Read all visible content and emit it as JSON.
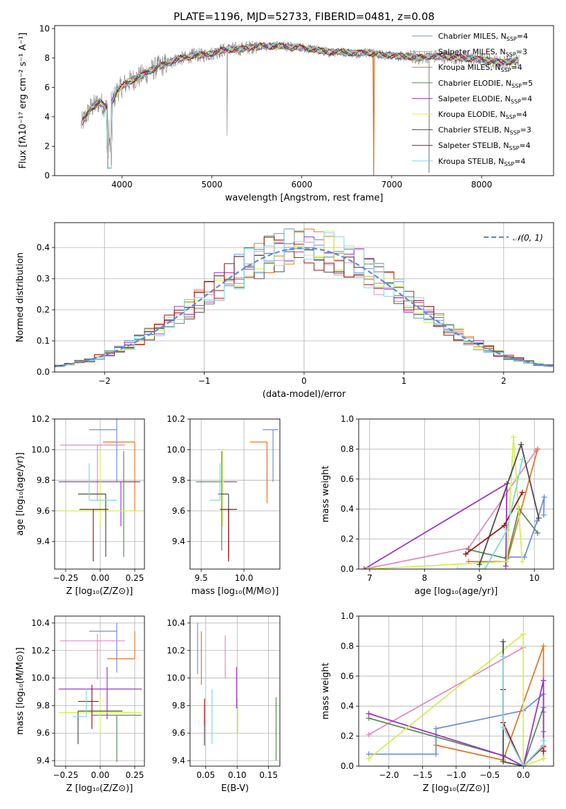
{
  "figure_title": "PLATE=1196, MJD=52733, FIBERID=0481, z=0.08",
  "colors": {
    "Chabrier MILES": "#6b8fe0",
    "Salpeter MILES": "#e08ac0",
    "Kroupa MILES": "#e07828",
    "Chabrier ELODIE": "#5a8c5a",
    "Salpeter ELODIE": "#9b35c0",
    "Kroupa ELODIE": "#d4ee50",
    "Chabrier STELIB": "#4a4a4a",
    "Salpeter STELIB": "#a01010",
    "Kroupa STELIB": "#80d8e0",
    "data": "#808080",
    "gaussian": "#5b8ad6"
  },
  "chart_data": [
    {
      "id": "spectrum",
      "type": "line",
      "title": "PLATE=1196, MJD=52733, FIBERID=0481, z=0.08",
      "xlabel": "wavelength [Angstrom, rest frame]",
      "ylabel": "Flux [fλ10⁻¹⁷ erg cm⁻² s⁻¹ A⁻¹]",
      "xlim": [
        3250,
        8800
      ],
      "ylim": [
        0,
        10.2
      ],
      "xticks": [
        4000,
        5000,
        6000,
        7000,
        8000
      ],
      "yticks": [
        0,
        2,
        4,
        6,
        8,
        10
      ],
      "legend": [
        "Chabrier MILES, N_SSP=4",
        "Salpeter MILES, N_SSP=3",
        "Kroupa MILES, N_SSP=4",
        "Chabrier ELODIE, N_SSP=5",
        "Salpeter ELODIE, N_SSP=4",
        "Kroupa ELODIE, N_SSP=4",
        "Chabrier STELIB, N_SSP=3",
        "Salpeter STELIB, N_SSP=4",
        "Kroupa STELIB, N_SSP=4"
      ],
      "legend_placement": "upper right",
      "continuum": {
        "x": [
          3550,
          3650,
          3750,
          3850,
          3950,
          4050,
          4150,
          4250,
          4400,
          4500,
          4600,
          4700,
          4800,
          4900,
          5000,
          5100,
          5200,
          5300,
          5400,
          5500,
          5600,
          5700,
          5800,
          5900,
          6000,
          6100,
          6200,
          6300,
          6400,
          6500,
          6600,
          6700,
          6800,
          6900,
          7000,
          7100,
          7200,
          7300,
          7400,
          7600,
          7800,
          8000,
          8200,
          8400
        ],
        "y": [
          3.5,
          4.6,
          5.0,
          4.5,
          5.8,
          6.3,
          6.6,
          6.9,
          7.4,
          7.6,
          7.9,
          8.0,
          8.2,
          8.2,
          8.3,
          8.5,
          8.6,
          8.6,
          8.7,
          8.8,
          8.8,
          8.8,
          8.8,
          8.7,
          8.7,
          8.6,
          8.5,
          8.4,
          8.4,
          8.4,
          8.3,
          8.4,
          8.3,
          8.2,
          8.2,
          8.1,
          8.1,
          8.0,
          8.1,
          8.1,
          8.0,
          7.9,
          7.7,
          7.8
        ]
      }
    },
    {
      "id": "residuals",
      "type": "histogram",
      "xlabel": "(data-model)/error",
      "ylabel": "Normed distribution",
      "xlim": [
        -2.5,
        2.5
      ],
      "ylim": [
        0,
        0.48
      ],
      "xticks": [
        -2,
        -1,
        0,
        1,
        2
      ],
      "yticks": [
        0.0,
        0.1,
        0.2,
        0.3,
        0.4
      ],
      "legend": [
        "𝒩(0, 1)"
      ],
      "legend_placement": "upper right",
      "bin_width": 0.1
    },
    {
      "id": "age-vs-Z",
      "type": "errorbar",
      "xlabel": "Z [log₁₀(Z/Z⊙)]",
      "ylabel": "age  [log₁₀(age/yr)]",
      "xlim": [
        -0.33,
        0.32
      ],
      "ylim": [
        9.22,
        10.2
      ],
      "xticks": [
        -0.25,
        0.0,
        0.25
      ],
      "yticks": [
        9.4,
        9.6,
        9.8,
        10.0,
        10.2
      ],
      "points": [
        {
          "model": "Chabrier MILES",
          "x": 0.12,
          "y": 10.13,
          "xerr": [
            0.2,
            0.0
          ],
          "yerr": [
            0.34,
            0.07
          ]
        },
        {
          "model": "Salpeter MILES",
          "x": -0.02,
          "y": 10.03,
          "xerr": [
            0.27,
            0.2
          ],
          "yerr": [
            0.36,
            0.0
          ]
        },
        {
          "model": "Kroupa MILES",
          "x": 0.25,
          "y": 10.05,
          "xerr": [
            0.23,
            0.0
          ],
          "yerr": [
            0.45,
            0.0
          ]
        },
        {
          "model": "Chabrier ELODIE",
          "x": 0.17,
          "y": 9.79,
          "xerr": [
            0.0,
            0.1
          ],
          "yerr": [
            0.49,
            0.2
          ]
        },
        {
          "model": "Salpeter ELODIE",
          "x": 0.15,
          "y": 9.79,
          "xerr": [
            0.45,
            0.14
          ],
          "yerr": [
            0.29,
            0.0
          ]
        },
        {
          "model": "Kroupa ELODIE",
          "x": 0.0,
          "y": 9.6,
          "xerr": [
            0.3,
            0.3
          ],
          "yerr": [
            0.1,
            0.4
          ]
        },
        {
          "model": "Chabrier STELIB",
          "x": 0.04,
          "y": 9.71,
          "xerr": [
            0.2,
            0.0
          ],
          "yerr": [
            0.41,
            0.0
          ]
        },
        {
          "model": "Salpeter STELIB",
          "x": -0.05,
          "y": 9.61,
          "xerr": [
            0.1,
            0.11
          ],
          "yerr": [
            0.34,
            0.0
          ]
        },
        {
          "model": "Kroupa STELIB",
          "x": -0.08,
          "y": 9.67,
          "xerr": [
            0.0,
            0.2
          ],
          "yerr": [
            0.0,
            0.24
          ]
        }
      ]
    },
    {
      "id": "age-vs-mass",
      "type": "errorbar",
      "xlabel": "mass [log₁₀(M/M⊙)]",
      "ylabel": "",
      "xlim": [
        9.37,
        10.42
      ],
      "ylim": [
        9.22,
        10.2
      ],
      "xticks": [
        9.5,
        10.0
      ],
      "yticks": [
        9.4,
        9.6,
        9.8,
        10.0,
        10.2
      ],
      "points": [
        {
          "model": "Chabrier MILES",
          "x": 10.34,
          "y": 10.13,
          "xerr": [
            0.12,
            0.06
          ],
          "yerr": [
            0.34,
            0.0
          ]
        },
        {
          "model": "Salpeter MILES",
          "x": 10.27,
          "y": 10.05,
          "xerr": [
            0.0,
            0.0
          ],
          "yerr": [
            0.35,
            0.0
          ]
        },
        {
          "model": "Kroupa MILES",
          "x": 10.27,
          "y": 10.05,
          "xerr": [
            0.2,
            0.0
          ],
          "yerr": [
            0.4,
            0.0
          ]
        },
        {
          "model": "Chabrier ELODIE",
          "x": 9.74,
          "y": 9.79,
          "xerr": [
            0.3,
            0.0
          ],
          "yerr": [
            0.45,
            0.2
          ]
        },
        {
          "model": "Salpeter ELODIE",
          "x": 9.92,
          "y": 9.79,
          "xerr": [
            0.16,
            0.0
          ],
          "yerr": [
            0.0,
            0.0
          ]
        },
        {
          "model": "Kroupa ELODIE",
          "x": 9.75,
          "y": 9.6,
          "xerr": [
            0.0,
            0.0
          ],
          "yerr": [
            0.1,
            0.4
          ]
        },
        {
          "model": "Chabrier STELIB",
          "x": 9.82,
          "y": 9.71,
          "xerr": [
            0.12,
            0.0
          ],
          "yerr": [
            0.41,
            0.0
          ]
        },
        {
          "model": "Salpeter STELIB",
          "x": 9.82,
          "y": 9.61,
          "xerr": [
            0.1,
            0.1
          ],
          "yerr": [
            0.34,
            0.0
          ]
        },
        {
          "model": "Kroupa STELIB",
          "x": 9.72,
          "y": 9.67,
          "xerr": [
            0.12,
            0.0
          ],
          "yerr": [
            0.0,
            0.24
          ]
        }
      ]
    },
    {
      "id": "weight-vs-age",
      "type": "line",
      "xlabel": "age  [log₁₀(age/yr)]",
      "ylabel": "mass weight",
      "xlim": [
        6.8,
        10.35
      ],
      "ylim": [
        0,
        1
      ],
      "xticks": [
        7,
        8,
        9,
        10
      ],
      "yticks": [
        0.0,
        0.2,
        0.4,
        0.6,
        0.8,
        1.0
      ],
      "series": [
        {
          "name": "Chabrier MILES",
          "x": [
            9.5,
            9.82,
            10.05,
            10.18,
            10.17
          ],
          "y": [
            0.08,
            0.08,
            0.32,
            0.48,
            0.36
          ]
        },
        {
          "name": "Salpeter MILES",
          "x": [
            6.9,
            8.8,
            10.03
          ],
          "y": [
            0.0,
            0.14,
            0.79
          ]
        },
        {
          "name": "Kroupa MILES",
          "x": [
            8.8,
            9.5,
            10.06
          ],
          "y": [
            0.05,
            0.05,
            0.8
          ]
        },
        {
          "name": "Chabrier ELODIE",
          "x": [
            8.8,
            9.5,
            9.72,
            10.06
          ],
          "y": [
            0.13,
            0.07,
            0.4,
            0.24
          ]
        },
        {
          "name": "Salpeter ELODIE",
          "x": [
            6.9,
            9.5,
            9.48
          ],
          "y": [
            0.0,
            0.57,
            0.02
          ]
        },
        {
          "name": "Kroupa ELODIE",
          "x": [
            6.95,
            9.5,
            9.62,
            9.78
          ],
          "y": [
            0.0,
            0.05,
            0.88,
            0.05
          ]
        },
        {
          "name": "Chabrier STELIB",
          "x": [
            9.0,
            9.76,
            10.08
          ],
          "y": [
            0.03,
            0.83,
            0.34
          ]
        },
        {
          "name": "Salpeter STELIB",
          "x": [
            8.75,
            9.45,
            9.78
          ],
          "y": [
            0.1,
            0.29,
            0.51
          ]
        },
        {
          "name": "Kroupa STELIB",
          "x": [
            8.6,
            9.1,
            9.5,
            9.78
          ],
          "y": [
            0.0,
            0.0,
            0.26,
            0.73
          ]
        }
      ]
    },
    {
      "id": "mass-vs-Z",
      "type": "errorbar",
      "xlabel": "Z [log₁₀(Z/Z⊙)]",
      "ylabel": "mass [log₁₀(M/M⊙)]",
      "xlim": [
        -0.33,
        0.32
      ],
      "ylim": [
        9.36,
        10.45
      ],
      "xticks": [
        -0.25,
        0.0,
        0.25
      ],
      "yticks": [
        9.4,
        9.6,
        9.8,
        10.0,
        10.2,
        10.4
      ],
      "points": [
        {
          "model": "Chabrier MILES",
          "x": 0.12,
          "y": 10.34,
          "xerr": [
            0.2,
            0.0
          ],
          "yerr": [
            0.3,
            0.06
          ]
        },
        {
          "model": "Salpeter MILES",
          "x": -0.02,
          "y": 10.27,
          "xerr": [
            0.27,
            0.2
          ],
          "yerr": [
            0.28,
            0.05
          ]
        },
        {
          "model": "Kroupa MILES",
          "x": 0.25,
          "y": 10.14,
          "xerr": [
            0.2,
            0.0
          ],
          "yerr": [
            0.0,
            0.2
          ]
        },
        {
          "model": "Chabrier ELODIE",
          "x": 0.12,
          "y": 9.73,
          "xerr": [
            0.18,
            0.18
          ],
          "yerr": [
            0.34,
            0.0
          ]
        },
        {
          "model": "Salpeter ELODIE",
          "x": 0.05,
          "y": 9.92,
          "xerr": [
            0.35,
            0.25
          ],
          "yerr": [
            0.22,
            0.16
          ]
        },
        {
          "model": "Kroupa ELODIE",
          "x": 0.0,
          "y": 9.75,
          "xerr": [
            0.3,
            0.3
          ],
          "yerr": [
            0.15,
            0.1
          ]
        },
        {
          "model": "Chabrier STELIB",
          "x": -0.16,
          "y": 9.76,
          "xerr": [
            0.0,
            0.32
          ],
          "yerr": [
            0.24,
            0.0
          ]
        },
        {
          "model": "Salpeter STELIB",
          "x": -0.06,
          "y": 9.83,
          "xerr": [
            0.1,
            0.05
          ],
          "yerr": [
            0.2,
            0.12
          ]
        },
        {
          "model": "Kroupa STELIB",
          "x": -0.1,
          "y": 9.72,
          "xerr": [
            0.1,
            0.0
          ],
          "yerr": [
            0.0,
            0.2
          ]
        }
      ]
    },
    {
      "id": "mass-vs-EBV",
      "type": "errorbar",
      "xlabel": "E(B-V)",
      "ylabel": "",
      "xlim": [
        0.025,
        0.168
      ],
      "ylim": [
        9.36,
        10.45
      ],
      "xticks": [
        0.05,
        0.1,
        0.15
      ],
      "yticks": [
        9.4,
        9.6,
        9.8,
        10.0,
        10.2,
        10.4
      ],
      "points": [
        {
          "model": "Chabrier MILES",
          "x": 0.037,
          "y": 10.22,
          "xerr": [
            0.0,
            0.0
          ],
          "yerr": [
            0.19,
            0.18
          ]
        },
        {
          "model": "Salpeter MILES",
          "x": 0.081,
          "y": 10.18,
          "xerr": [
            0.0,
            0.0
          ],
          "yerr": [
            0.18,
            0.13
          ]
        },
        {
          "model": "Kroupa MILES",
          "x": 0.043,
          "y": 10.15,
          "xerr": [
            0.0,
            0.0
          ],
          "yerr": [
            0.2,
            0.19
          ]
        },
        {
          "model": "Chabrier ELODIE",
          "x": 0.162,
          "y": 9.63,
          "xerr": [
            0.0,
            0.0
          ],
          "yerr": [
            0.23,
            0.23
          ]
        },
        {
          "model": "Salpeter ELODIE",
          "x": 0.099,
          "y": 9.94,
          "xerr": [
            0.0,
            0.0
          ],
          "yerr": [
            0.16,
            0.14
          ]
        },
        {
          "model": "Kroupa ELODIE",
          "x": 0.101,
          "y": 9.77,
          "xerr": [
            0.0,
            0.0
          ],
          "yerr": [
            0.17,
            0.08
          ]
        },
        {
          "model": "Chabrier STELIB",
          "x": 0.048,
          "y": 9.7,
          "xerr": [
            0.0,
            0.0
          ],
          "yerr": [
            0.19,
            0.1
          ]
        },
        {
          "model": "Salpeter STELIB",
          "x": 0.048,
          "y": 9.75,
          "xerr": [
            0.0,
            0.0
          ],
          "yerr": [
            0.1,
            0.1
          ]
        },
        {
          "model": "Kroupa STELIB",
          "x": 0.06,
          "y": 9.72,
          "xerr": [
            0.0,
            0.0
          ],
          "yerr": [
            0.2,
            0.2
          ]
        }
      ]
    },
    {
      "id": "weight-vs-Z",
      "type": "line",
      "xlabel": "Z [log₁₀(Z/Z⊙)]",
      "ylabel": "mass weight",
      "xlim": [
        -2.45,
        0.45
      ],
      "ylim": [
        0,
        1
      ],
      "xticks": [
        -2.0,
        -1.5,
        -1.0,
        -0.5,
        0.0
      ],
      "yticks": [
        0.0,
        0.2,
        0.4,
        0.6,
        0.8,
        1.0
      ],
      "series": [
        {
          "name": "Chabrier MILES",
          "x": [
            -2.3,
            -1.3,
            -1.3,
            0.0,
            0.3,
            0.3
          ],
          "y": [
            0.08,
            0.08,
            0.25,
            0.37,
            0.48,
            0.36
          ]
        },
        {
          "name": "Salpeter MILES",
          "x": [
            -2.3,
            0.0
          ],
          "y": [
            0.21,
            0.79
          ]
        },
        {
          "name": "Kroupa MILES",
          "x": [
            -1.3,
            -0.3,
            0.3,
            0.3
          ],
          "y": [
            0.14,
            0.04,
            0.8,
            0.05
          ]
        },
        {
          "name": "Chabrier ELODIE",
          "x": [
            -2.3,
            -0.3,
            0.0,
            0.3,
            0.3
          ],
          "y": [
            0.32,
            0.07,
            0.0,
            0.39,
            0.23
          ]
        },
        {
          "name": "Salpeter ELODIE",
          "x": [
            -2.3,
            -0.3,
            0.0,
            0.3,
            0.3
          ],
          "y": [
            0.35,
            0.07,
            0.0,
            0.57,
            0.1
          ]
        },
        {
          "name": "Kroupa ELODIE",
          "x": [
            -2.3,
            0.0,
            0.0,
            0.3
          ],
          "y": [
            0.05,
            0.88,
            0.0,
            0.05
          ]
        },
        {
          "name": "Chabrier STELIB",
          "x": [
            -0.3,
            -0.3,
            0.0,
            0.3
          ],
          "y": [
            0.83,
            0.03,
            0.0,
            0.14
          ]
        },
        {
          "name": "Salpeter STELIB",
          "x": [
            -0.3,
            -0.3,
            0.0,
            0.3,
            0.3
          ],
          "y": [
            0.51,
            0.29,
            0.0,
            0.13,
            0.1
          ]
        },
        {
          "name": "Kroupa STELIB",
          "x": [
            -0.3,
            -0.3,
            0.0,
            0.3,
            0.3
          ],
          "y": [
            0.73,
            0.26,
            0.0,
            0.14,
            0.17
          ]
        }
      ]
    }
  ]
}
